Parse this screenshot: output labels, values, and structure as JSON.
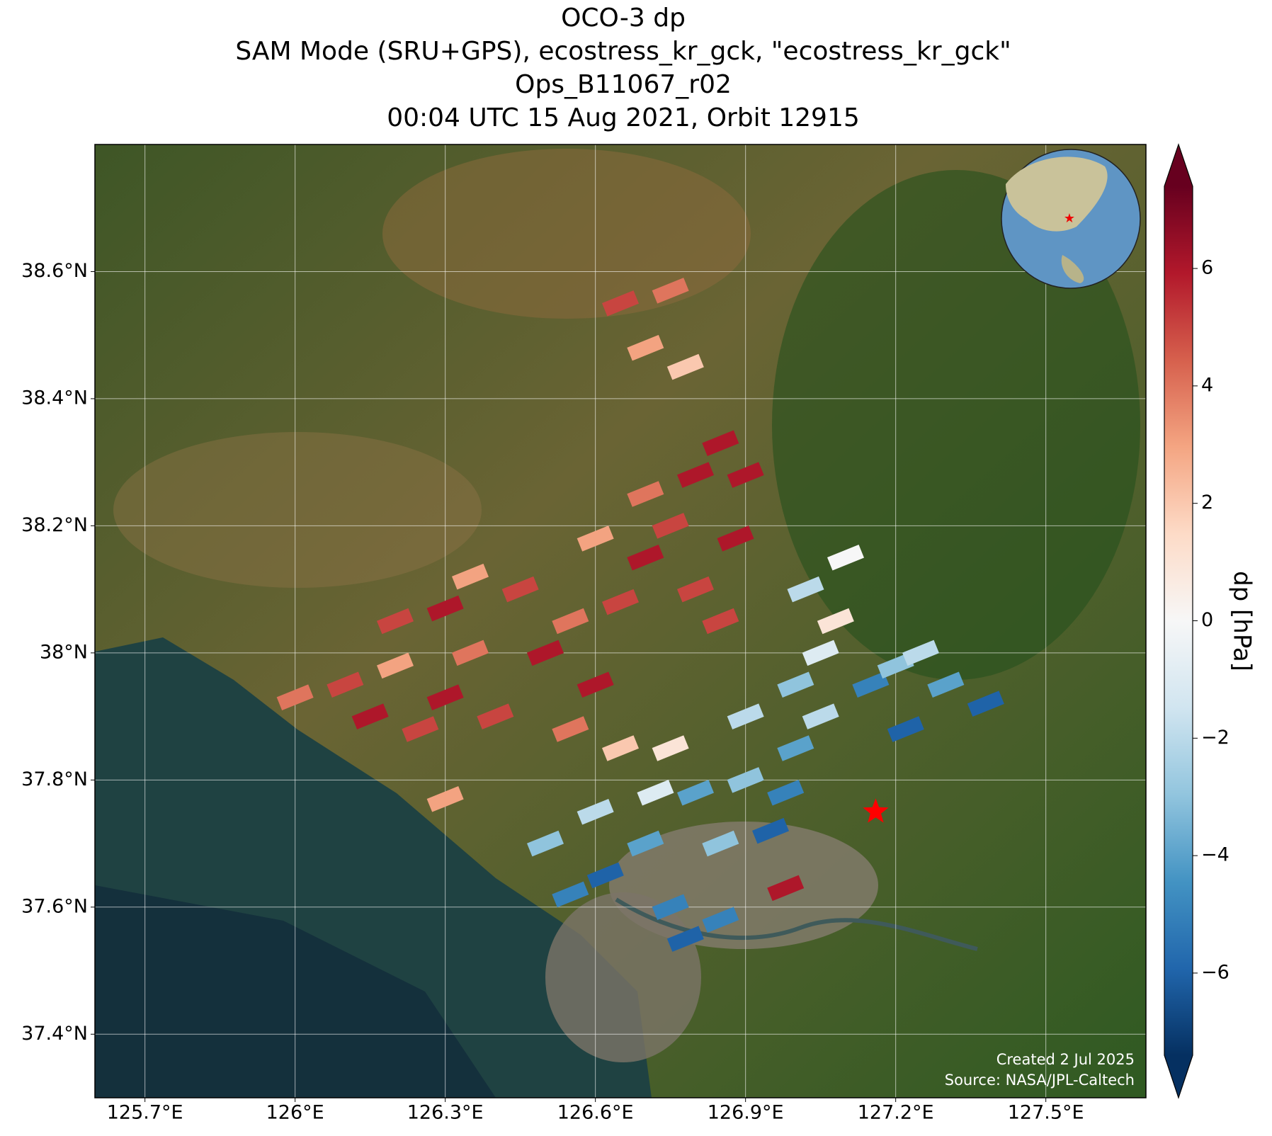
{
  "chart_data": {
    "type": "map",
    "title_lines": [
      "OCO-3 dp",
      "SAM Mode (SRU+GPS), ecostress_kr_gck, \"ecostress_kr_gck\"",
      "Ops_B11067_r02",
      "00:04 UTC 15 Aug 2021, Orbit 12915"
    ],
    "xlim": [
      125.6,
      127.7
    ],
    "ylim": [
      37.3,
      38.8
    ],
    "xticks": [
      {
        "value": 125.7,
        "label": "125.7°E"
      },
      {
        "value": 126.0,
        "label": "126°E"
      },
      {
        "value": 126.3,
        "label": "126.3°E"
      },
      {
        "value": 126.6,
        "label": "126.6°E"
      },
      {
        "value": 126.9,
        "label": "126.9°E"
      },
      {
        "value": 127.2,
        "label": "127.2°E"
      },
      {
        "value": 127.5,
        "label": "127.5°E"
      }
    ],
    "yticks": [
      {
        "value": 37.4,
        "label": "37.4°N"
      },
      {
        "value": 37.6,
        "label": "37.6°N"
      },
      {
        "value": 37.8,
        "label": "37.8°N"
      },
      {
        "value": 38.0,
        "label": "38°N"
      },
      {
        "value": 38.2,
        "label": "38.2°N"
      },
      {
        "value": 38.4,
        "label": "38.4°N"
      },
      {
        "value": 38.6,
        "label": "38.6°N"
      }
    ],
    "grid": true,
    "colorbar": {
      "label": "dp [hPa]",
      "clim": [
        -7.4,
        7.4
      ],
      "colormap": [
        "#053061",
        "#2166ac",
        "#4393c3",
        "#92c5de",
        "#d1e5f0",
        "#f7f7f7",
        "#fddbc7",
        "#f4a582",
        "#d6604d",
        "#b2182b",
        "#67001f"
      ],
      "ticks": [
        {
          "value": -6,
          "label": "−6"
        },
        {
          "value": -4,
          "label": "−4"
        },
        {
          "value": -2,
          "label": "−2"
        },
        0,
        2,
        4,
        6
      ]
    },
    "lon": [
      126.0,
      126.1,
      126.15,
      126.2,
      126.25,
      126.3,
      126.35,
      126.4,
      126.2,
      126.3,
      126.35,
      126.45,
      126.5,
      126.55,
      126.6,
      126.65,
      126.7,
      126.75,
      126.6,
      126.7,
      126.8,
      126.85,
      126.8,
      126.88,
      126.9,
      126.85,
      126.55,
      126.65,
      126.65,
      126.7,
      126.75,
      126.78,
      126.3,
      126.5,
      126.55,
      126.6,
      126.62,
      126.7,
      126.72,
      126.75,
      126.8,
      126.85,
      126.9,
      126.95,
      126.98,
      127.0,
      127.05,
      127.0,
      127.05,
      127.08,
      127.02,
      127.1,
      127.15,
      127.2,
      127.25,
      127.22,
      127.3,
      126.78,
      126.85,
      126.9,
      126.75,
      126.98,
      127.38
    ],
    "lat": [
      37.93,
      37.95,
      37.9,
      37.98,
      37.88,
      37.93,
      38.0,
      37.9,
      38.05,
      38.07,
      38.12,
      38.1,
      38.0,
      38.05,
      37.95,
      38.08,
      38.15,
      38.2,
      38.18,
      38.25,
      38.28,
      38.33,
      38.1,
      38.18,
      38.28,
      38.05,
      37.88,
      37.85,
      38.55,
      38.48,
      38.57,
      38.45,
      37.77,
      37.7,
      37.62,
      37.75,
      37.65,
      37.7,
      37.78,
      37.6,
      37.78,
      37.7,
      37.8,
      37.72,
      37.78,
      37.85,
      37.9,
      37.95,
      38.0,
      38.05,
      38.1,
      38.15,
      37.95,
      37.98,
      38.0,
      37.88,
      37.95,
      37.55,
      37.58,
      37.9,
      37.85,
      37.63,
      37.92
    ],
    "dp": [
      4,
      5,
      6,
      3,
      5,
      6,
      4,
      5,
      5,
      6,
      3,
      5,
      6,
      4,
      6,
      5,
      6,
      5,
      3,
      4,
      6,
      6,
      5,
      6,
      6,
      5,
      4,
      2,
      5,
      3,
      4,
      2,
      3,
      -3,
      -5,
      -2,
      -6,
      -4,
      -1,
      -5,
      -4,
      -3,
      -3,
      -6,
      -5,
      -4,
      -2,
      -3,
      -1,
      1,
      -2,
      0,
      -5,
      -3,
      -2,
      -6,
      -4,
      -6,
      -5,
      -2,
      1,
      6,
      -6
    ],
    "target": {
      "lon": 127.16,
      "lat": 37.75
    },
    "annotations": [
      "Created 2 Jul 2025",
      "Source: NASA/JPL-Caltech"
    ]
  }
}
